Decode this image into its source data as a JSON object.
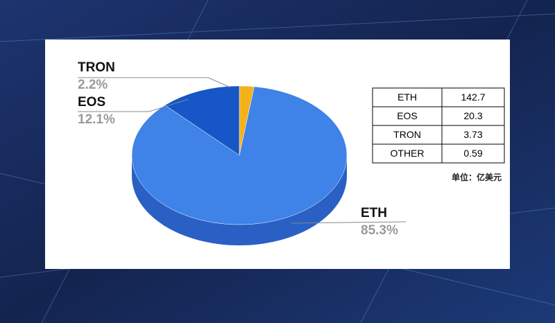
{
  "chart_data": {
    "type": "pie",
    "labels": [
      "TRON",
      "ETH",
      "EOS"
    ],
    "values": [
      2.2,
      85.3,
      12.1
    ],
    "value_labels": [
      "2.2%",
      "85.3%",
      "12.1%"
    ],
    "colors": [
      "#f3b21a",
      "#3f82e8",
      "#1656c6"
    ]
  },
  "table": {
    "rows": [
      [
        "ETH",
        "142.7"
      ],
      [
        "EOS",
        "20.3"
      ],
      [
        "TRON",
        "3.73"
      ],
      [
        "OTHER",
        "0.59"
      ]
    ]
  },
  "unit_note": "单位：亿美元"
}
